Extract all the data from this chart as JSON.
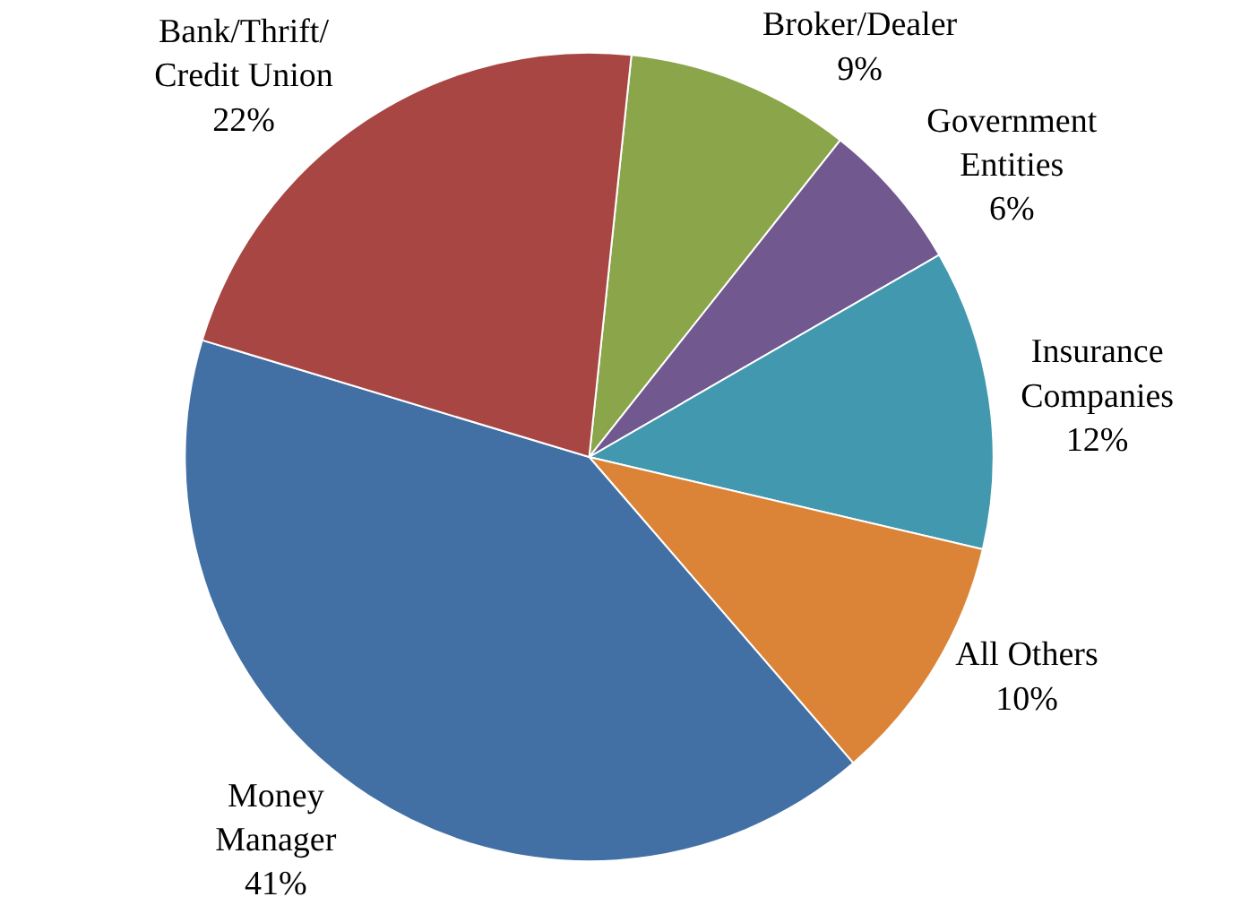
{
  "chart_data": {
    "type": "pie",
    "categories": [
      "Broker/Dealer",
      "Government\nEntities",
      "Insurance\nCompanies",
      "All Others",
      "Money\nManager",
      "Bank/Thrift/\nCredit Union"
    ],
    "values": [
      9,
      6,
      12,
      10,
      41,
      22
    ],
    "value_labels": [
      "9%",
      "6%",
      "12%",
      "10%",
      "41%",
      "22%"
    ],
    "colors": [
      "#8ba54a",
      "#71588f",
      "#4298ae",
      "#db8437",
      "#4270a5",
      "#a84643"
    ],
    "legend": false
  }
}
